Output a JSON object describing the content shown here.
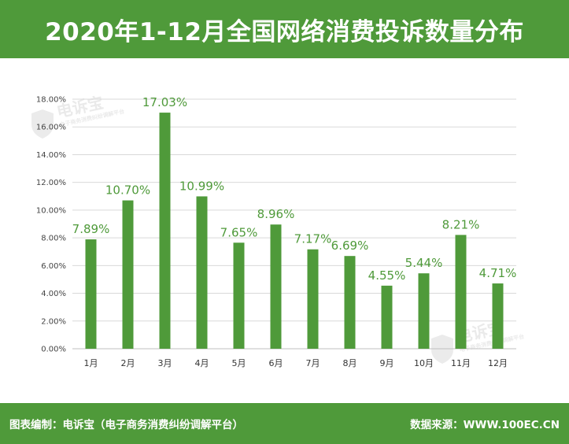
{
  "header": {
    "title": "2020年1-12月全国网络消费投诉数量分布"
  },
  "footer": {
    "left_text": "图表编制：电诉宝（电子商务消费纠纷调解平台）",
    "right_text": "数据来源：WWW.100EC.CN"
  },
  "watermark": {
    "brand": "电诉宝",
    "tagline": "电子商务消费纠纷调解平台"
  },
  "colors": {
    "accent": "#4f9a3a",
    "bar": "#4f9a3a",
    "grid": "#d9d9d9"
  },
  "chart_data": {
    "type": "bar",
    "title": "2020年1-12月全国网络消费投诉数量分布",
    "categories": [
      "1月",
      "2月",
      "3月",
      "4月",
      "5月",
      "6月",
      "7月",
      "8月",
      "9月",
      "10月",
      "11月",
      "12月"
    ],
    "values": [
      7.89,
      10.7,
      17.03,
      10.99,
      7.65,
      8.96,
      7.17,
      6.69,
      4.55,
      5.44,
      8.21,
      4.71
    ],
    "data_labels": [
      "7.89%",
      "10.70%",
      "17.03%",
      "10.99%",
      "7.65%",
      "8.96%",
      "7.17%",
      "6.69%",
      "4.55%",
      "5.44%",
      "8.21%",
      "4.71%"
    ],
    "y_ticks": [
      "0.00%",
      "2.00%",
      "4.00%",
      "6.00%",
      "8.00%",
      "10.00%",
      "12.00%",
      "14.00%",
      "16.00%",
      "18.00%"
    ],
    "ylim": [
      0,
      18
    ],
    "grid": true,
    "legend": "none"
  }
}
